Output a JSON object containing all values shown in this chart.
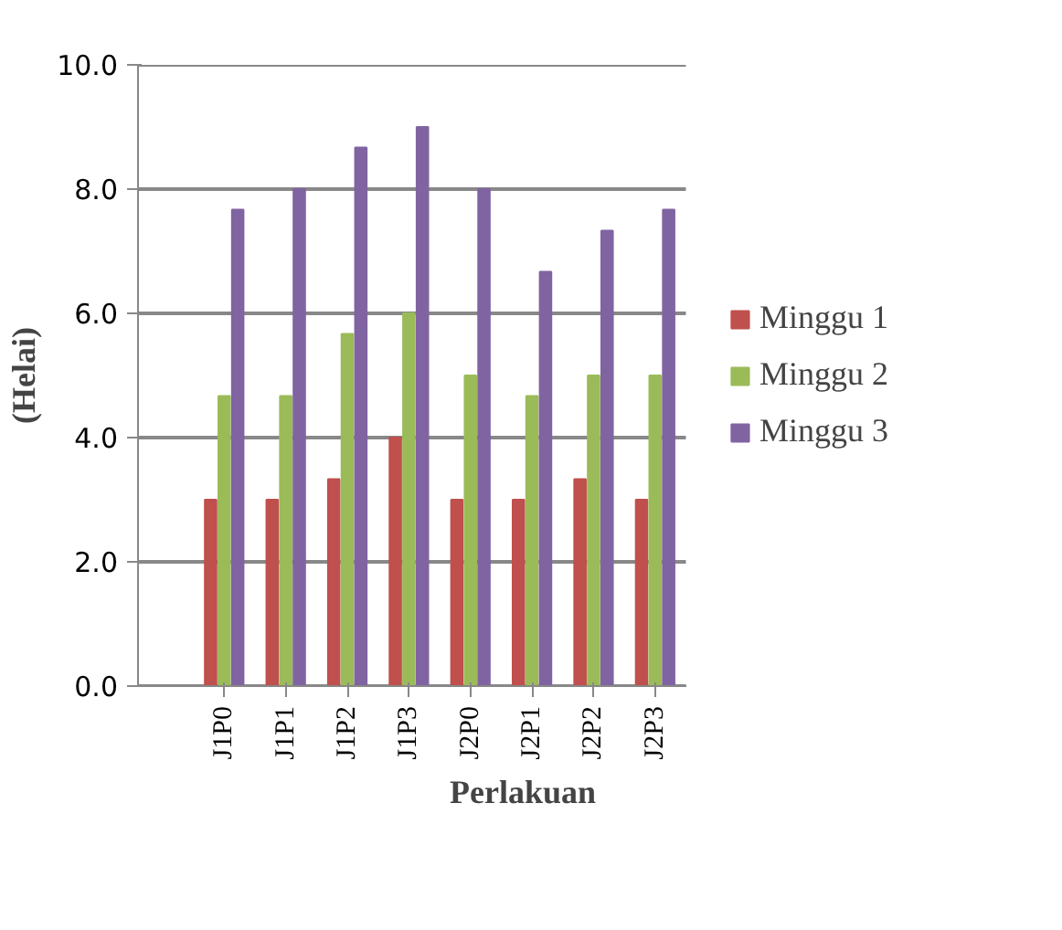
{
  "chart_data": {
    "type": "bar",
    "xlabel": "Perlakuan",
    "ylabel": "(Helai)",
    "categories": [
      "J1P0",
      "J1P1",
      "J1P2",
      "J1P3",
      "J2P0",
      "J2P1",
      "J2P2",
      "J2P3"
    ],
    "series": [
      {
        "name": "Minggu 1",
        "color": "#c0504d",
        "values": [
          3.0,
          3.0,
          3.33,
          4.0,
          3.0,
          3.0,
          3.33,
          3.0
        ]
      },
      {
        "name": "Minggu 2",
        "color": "#9bbb59",
        "values": [
          4.67,
          4.67,
          5.67,
          6.0,
          5.0,
          4.67,
          5.0,
          5.0
        ]
      },
      {
        "name": "Minggu 3",
        "color": "#8064a2",
        "values": [
          7.67,
          8.0,
          8.67,
          9.0,
          8.0,
          6.67,
          7.33,
          7.67
        ]
      }
    ],
    "ylim": [
      0,
      10
    ],
    "yticks": [
      {
        "value": 0,
        "label": "0.0"
      },
      {
        "value": 2,
        "label": "2.0"
      },
      {
        "value": 4,
        "label": "4.0"
      },
      {
        "value": 6,
        "label": "6.0"
      },
      {
        "value": 8,
        "label": "8.0"
      },
      {
        "value": 10,
        "label": "10.0"
      }
    ],
    "grid": "y",
    "legend": "right"
  }
}
